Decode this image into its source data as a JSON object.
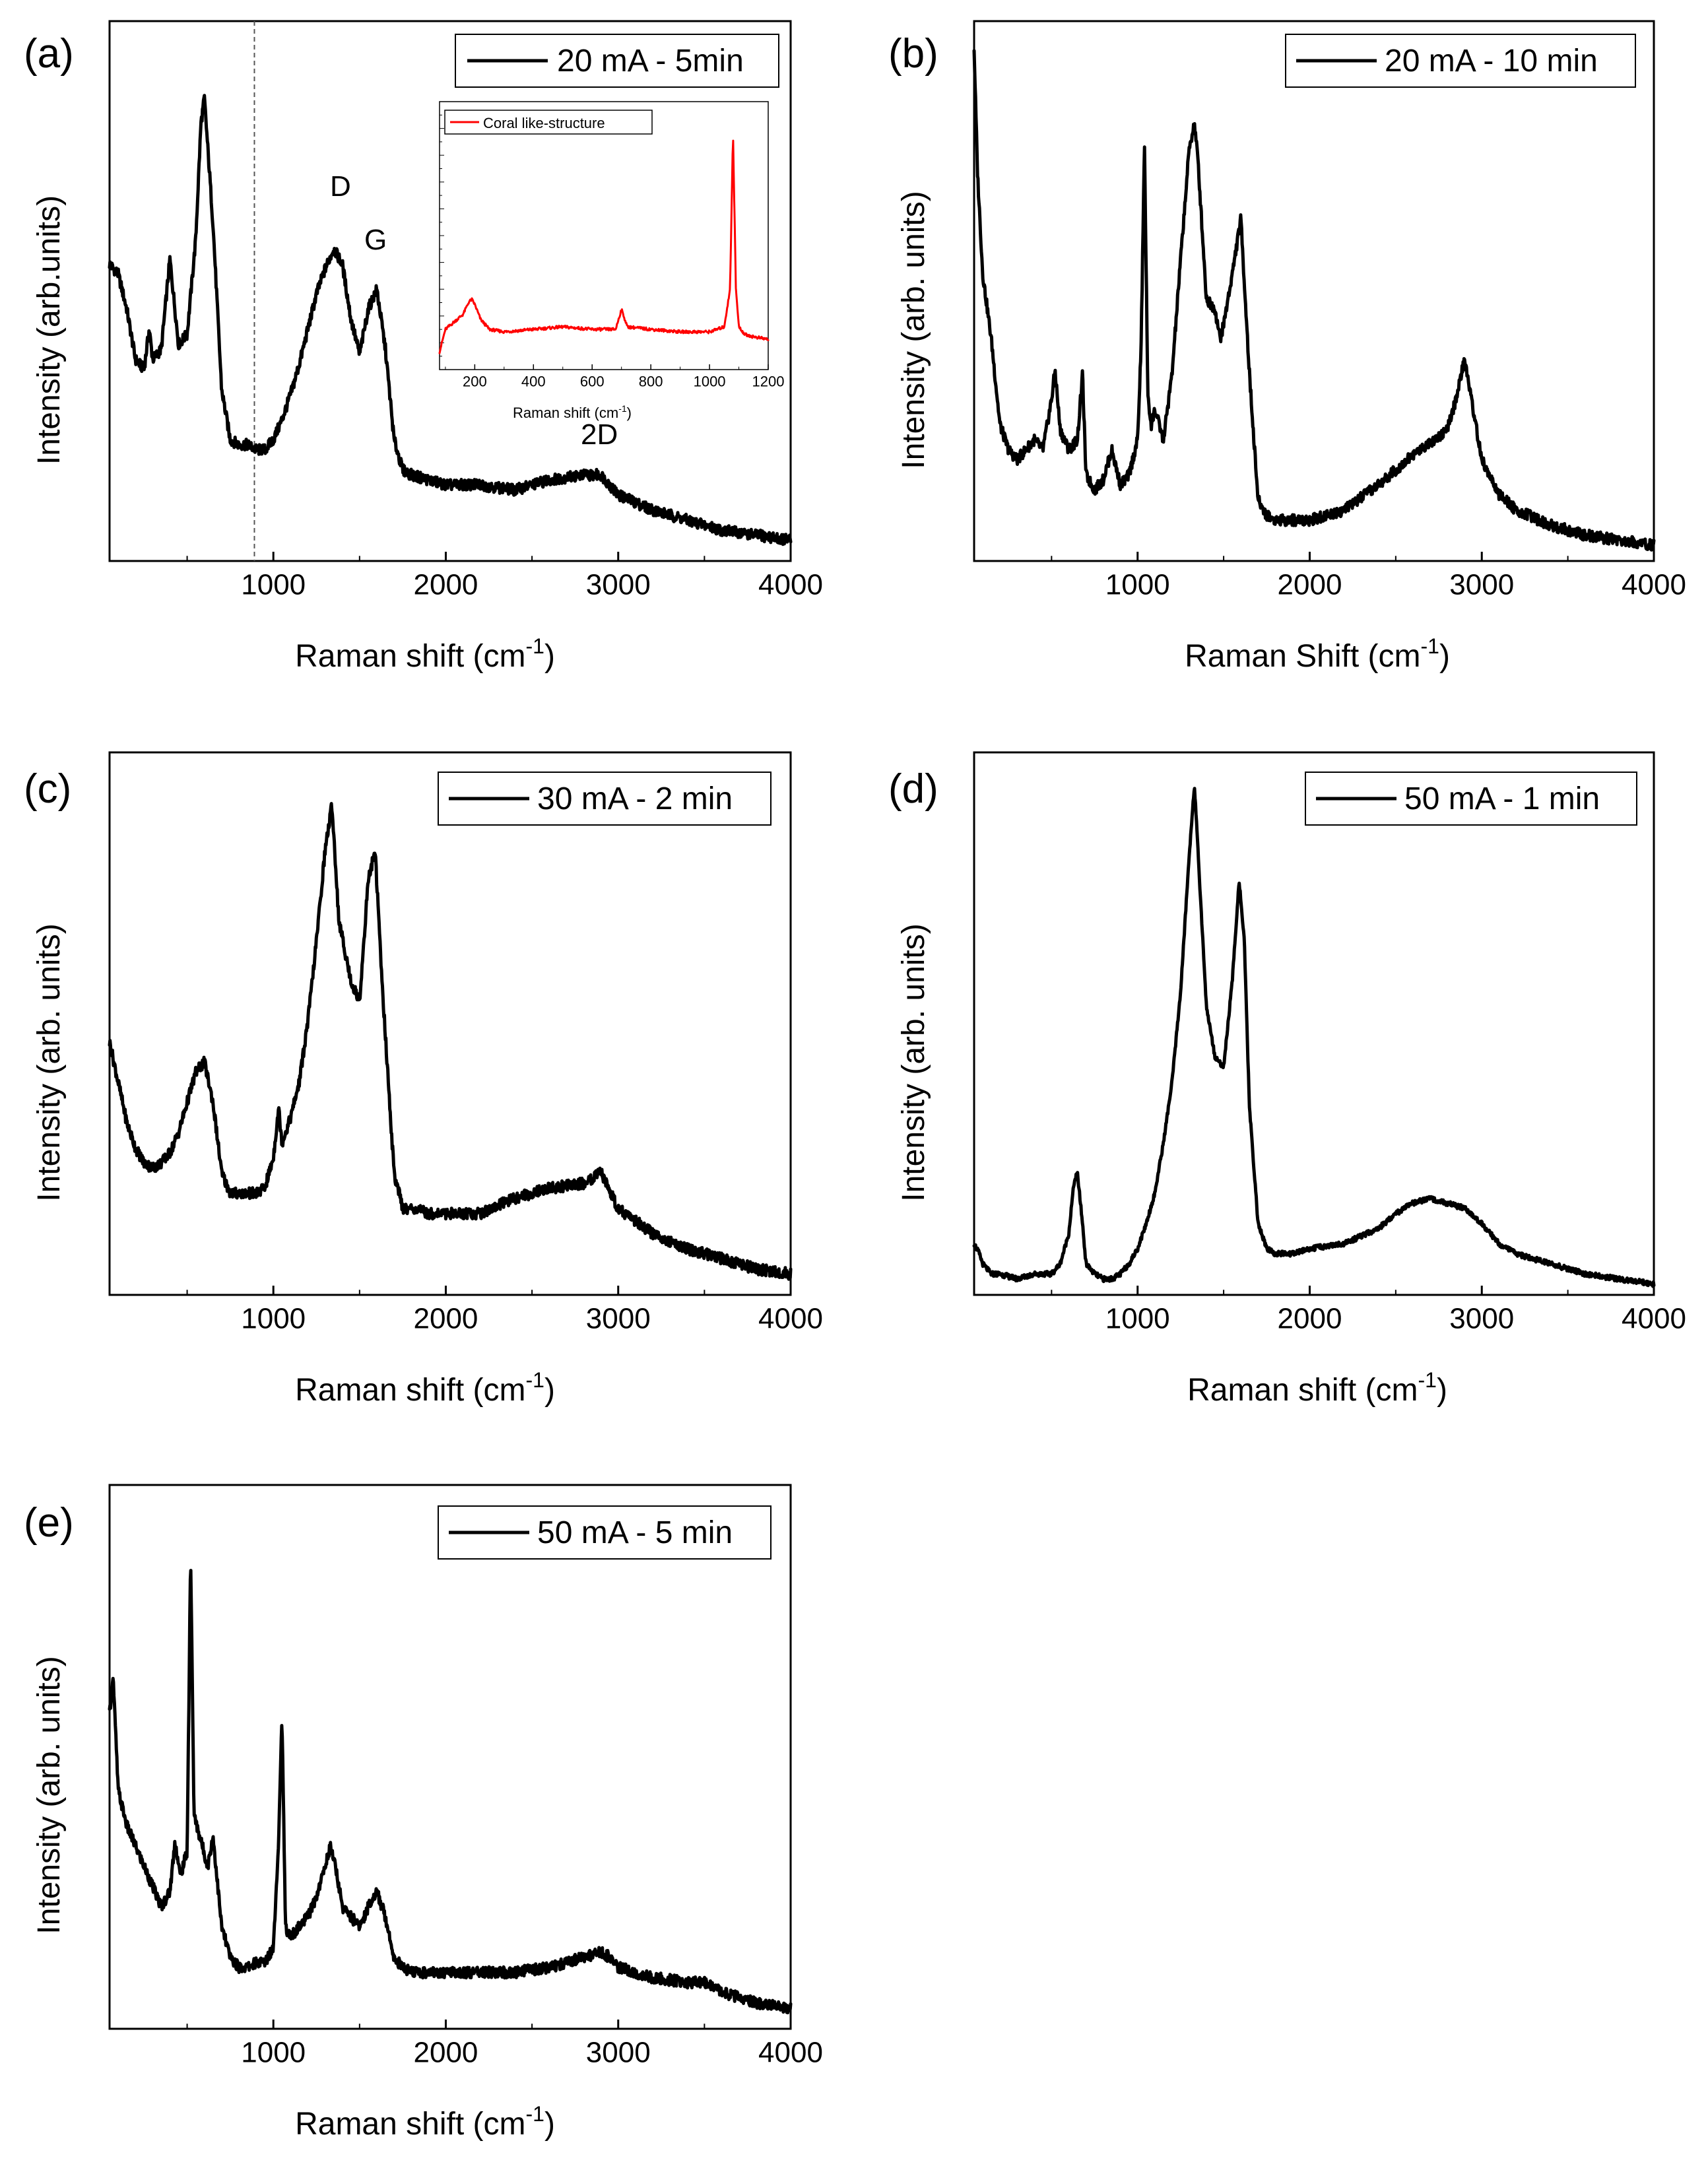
{
  "panels": [
    {
      "id": "a",
      "panel_label": "(a)",
      "legend": "20 mA - 5min",
      "xlabel": "Raman shift (cm",
      "xlabel_sup": "-1",
      "xlabel_close": ")",
      "ylabel": "Intensity (arb.units)",
      "annotations": [
        "D",
        "G",
        "2D"
      ],
      "inset": {
        "legend": "Coral like-structure",
        "xlabel": "Raman shift (cm",
        "xlabel_sup": "-1",
        "xlabel_close": ")"
      }
    },
    {
      "id": "b",
      "panel_label": "(b)",
      "legend": "20 mA - 10 min",
      "xlabel": "Raman Shift (cm",
      "xlabel_sup": "-1",
      "xlabel_close": ")",
      "ylabel": "Intensity (arb. units)"
    },
    {
      "id": "c",
      "panel_label": "(c)",
      "legend": "30 mA - 2 min",
      "xlabel": "Raman shift (cm",
      "xlabel_sup": "-1",
      "xlabel_close": ")",
      "ylabel": "Intensity (arb. units)"
    },
    {
      "id": "d",
      "panel_label": "(d)",
      "legend": "50 mA - 1 min",
      "xlabel": "Raman shift (cm",
      "xlabel_sup": "-1",
      "xlabel_close": ")",
      "ylabel": "Intensity (arb. units)"
    },
    {
      "id": "e",
      "panel_label": "(e)",
      "legend": "50 mA - 5 min",
      "xlabel": "Raman shift (cm",
      "xlabel_sup": "-1",
      "xlabel_close": ")",
      "ylabel": "Intensity (arb. units)"
    }
  ],
  "chart_data": [
    {
      "panel": "a",
      "type": "line",
      "title": "",
      "series": [
        {
          "name": "20 mA - 5min",
          "color": "#000000",
          "x": [
            50,
            100,
            150,
            200,
            250,
            280,
            300,
            350,
            400,
            450,
            500,
            550,
            580,
            600,
            650,
            700,
            750,
            800,
            850,
            900,
            950,
            1000,
            1050,
            1100,
            1150,
            1200,
            1250,
            1300,
            1350,
            1400,
            1450,
            1500,
            1550,
            1600,
            1650,
            1700,
            1750,
            1800,
            1900,
            2000,
            2200,
            2400,
            2600,
            2800,
            2900,
            3000,
            3200,
            3400,
            3600,
            3800,
            4000
          ],
          "y": [
            0.57,
            0.55,
            0.48,
            0.38,
            0.36,
            0.44,
            0.38,
            0.4,
            0.58,
            0.41,
            0.43,
            0.62,
            0.85,
            0.9,
            0.65,
            0.32,
            0.22,
            0.21,
            0.21,
            0.2,
            0.2,
            0.22,
            0.26,
            0.31,
            0.37,
            0.44,
            0.51,
            0.56,
            0.6,
            0.57,
            0.46,
            0.39,
            0.48,
            0.52,
            0.4,
            0.22,
            0.16,
            0.15,
            0.14,
            0.13,
            0.13,
            0.12,
            0.14,
            0.15,
            0.15,
            0.11,
            0.08,
            0.06,
            0.04,
            0.03,
            0.02
          ]
        }
      ],
      "xlim": [
        50,
        4000
      ],
      "xticks": [
        1000,
        2000,
        3000,
        4000
      ],
      "ylim": [
        0,
        1
      ],
      "reference_line_x": 890,
      "legend_position": "top-right"
    },
    {
      "panel": "a-inset",
      "type": "line",
      "series": [
        {
          "name": "Coral like-structure",
          "color": "#ff0000",
          "x": [
            80,
            100,
            120,
            140,
            160,
            180,
            190,
            200,
            220,
            250,
            300,
            400,
            500,
            600,
            680,
            700,
            720,
            800,
            900,
            1000,
            1050,
            1070,
            1080,
            1090,
            1100,
            1120,
            1150,
            1200
          ],
          "y": [
            0.05,
            0.14,
            0.16,
            0.18,
            0.2,
            0.25,
            0.26,
            0.24,
            0.18,
            0.14,
            0.13,
            0.14,
            0.15,
            0.14,
            0.14,
            0.22,
            0.15,
            0.14,
            0.13,
            0.13,
            0.15,
            0.3,
            0.93,
            0.3,
            0.15,
            0.12,
            0.11,
            0.1
          ]
        }
      ],
      "xlim": [
        80,
        1200
      ],
      "xticks": [
        200,
        400,
        600,
        800,
        1000,
        1200
      ],
      "ylim": [
        0,
        1
      ],
      "legend_position": "top-left"
    },
    {
      "panel": "b",
      "type": "line",
      "series": [
        {
          "name": "20 mA - 10 min",
          "color": "#000000",
          "x": [
            50,
            70,
            100,
            150,
            200,
            250,
            300,
            350,
            400,
            450,
            500,
            520,
            550,
            600,
            650,
            680,
            700,
            750,
            800,
            850,
            900,
            950,
            1000,
            1020,
            1040,
            1060,
            1080,
            1100,
            1150,
            1200,
            1250,
            1300,
            1330,
            1350,
            1400,
            1450,
            1480,
            1500,
            1550,
            1600,
            1650,
            1700,
            1750,
            1800,
            1900,
            2000,
            2200,
            2400,
            2600,
            2800,
            2850,
            2900,
            2950,
            3000,
            3100,
            3200,
            3400,
            3600,
            3800,
            4000
          ],
          "y": [
            1.0,
            0.75,
            0.55,
            0.42,
            0.25,
            0.2,
            0.18,
            0.2,
            0.22,
            0.2,
            0.3,
            0.36,
            0.24,
            0.2,
            0.22,
            0.35,
            0.15,
            0.12,
            0.14,
            0.2,
            0.13,
            0.15,
            0.22,
            0.4,
            0.81,
            0.3,
            0.25,
            0.28,
            0.22,
            0.35,
            0.58,
            0.8,
            0.85,
            0.78,
            0.5,
            0.48,
            0.42,
            0.45,
            0.55,
            0.66,
            0.35,
            0.1,
            0.07,
            0.06,
            0.06,
            0.06,
            0.08,
            0.13,
            0.19,
            0.24,
            0.3,
            0.38,
            0.28,
            0.18,
            0.11,
            0.08,
            0.05,
            0.03,
            0.02,
            0.01
          ]
        }
      ],
      "xlim": [
        50,
        4000
      ],
      "xticks": [
        1000,
        2000,
        3000,
        4000
      ],
      "ylim": [
        0,
        1
      ],
      "legend_position": "top-right"
    },
    {
      "panel": "c",
      "type": "line",
      "series": [
        {
          "name": "30 mA - 2 min",
          "color": "#000000",
          "x": [
            50,
            100,
            150,
            200,
            250,
            300,
            350,
            400,
            450,
            500,
            550,
            600,
            650,
            700,
            750,
            800,
            850,
            900,
            950,
            1000,
            1030,
            1050,
            1070,
            1100,
            1150,
            1200,
            1250,
            1300,
            1340,
            1380,
            1450,
            1500,
            1550,
            1590,
            1630,
            1700,
            1750,
            1800,
            1900,
            2000,
            2200,
            2400,
            2600,
            2800,
            2900,
            3000,
            3200,
            3400,
            3600,
            3800,
            4000
          ],
          "y": [
            0.48,
            0.4,
            0.32,
            0.27,
            0.24,
            0.23,
            0.24,
            0.26,
            0.3,
            0.36,
            0.42,
            0.44,
            0.36,
            0.22,
            0.18,
            0.18,
            0.18,
            0.18,
            0.19,
            0.25,
            0.35,
            0.28,
            0.3,
            0.33,
            0.4,
            0.52,
            0.68,
            0.86,
            0.95,
            0.72,
            0.6,
            0.56,
            0.8,
            0.86,
            0.6,
            0.22,
            0.15,
            0.15,
            0.14,
            0.14,
            0.14,
            0.17,
            0.19,
            0.2,
            0.22,
            0.15,
            0.1,
            0.07,
            0.05,
            0.03,
            0.02
          ]
        }
      ],
      "xlim": [
        50,
        4000
      ],
      "xticks": [
        1000,
        2000,
        3000,
        4000
      ],
      "ylim": [
        0,
        1
      ],
      "legend_position": "top-right"
    },
    {
      "panel": "d",
      "type": "line",
      "series": [
        {
          "name": "50 mA - 1 min",
          "color": "#000000",
          "x": [
            50,
            80,
            100,
            150,
            200,
            300,
            400,
            500,
            550,
            600,
            630,
            650,
            680,
            700,
            750,
            800,
            850,
            900,
            950,
            1000,
            1050,
            1100,
            1150,
            1200,
            1250,
            1300,
            1330,
            1360,
            1400,
            1450,
            1500,
            1550,
            1590,
            1620,
            1650,
            1700,
            1750,
            1800,
            1900,
            2000,
            2200,
            2400,
            2500,
            2600,
            2700,
            2800,
            2900,
            3000,
            3100,
            3200,
            3400,
            3600,
            3800,
            4000
          ],
          "y": [
            0.08,
            0.06,
            0.04,
            0.02,
            0.02,
            0.01,
            0.02,
            0.02,
            0.04,
            0.1,
            0.2,
            0.22,
            0.12,
            0.04,
            0.02,
            0.01,
            0.01,
            0.02,
            0.04,
            0.07,
            0.12,
            0.18,
            0.28,
            0.4,
            0.58,
            0.85,
            0.99,
            0.8,
            0.55,
            0.45,
            0.43,
            0.6,
            0.8,
            0.68,
            0.35,
            0.12,
            0.07,
            0.06,
            0.06,
            0.07,
            0.08,
            0.11,
            0.14,
            0.16,
            0.17,
            0.16,
            0.15,
            0.12,
            0.08,
            0.06,
            0.04,
            0.02,
            0.01,
            0.0
          ]
        }
      ],
      "xlim": [
        50,
        4000
      ],
      "xticks": [
        1000,
        2000,
        3000,
        4000
      ],
      "ylim": [
        0,
        1
      ],
      "legend_position": "top-right"
    },
    {
      "panel": "e",
      "type": "line",
      "series": [
        {
          "name": "50 mA - 5 min",
          "color": "#000000",
          "x": [
            50,
            70,
            100,
            150,
            200,
            250,
            300,
            350,
            400,
            430,
            460,
            500,
            520,
            540,
            580,
            620,
            650,
            700,
            750,
            800,
            850,
            900,
            950,
            1000,
            1030,
            1050,
            1070,
            1100,
            1150,
            1200,
            1250,
            1300,
            1330,
            1360,
            1400,
            1450,
            1500,
            1550,
            1600,
            1650,
            1700,
            1750,
            1800,
            1900,
            2000,
            2200,
            2400,
            2600,
            2800,
            2900,
            2950,
            3000,
            3200,
            3400,
            3500,
            3600,
            3800,
            4000
          ],
          "y": [
            0.6,
            0.68,
            0.45,
            0.38,
            0.34,
            0.3,
            0.26,
            0.22,
            0.25,
            0.35,
            0.28,
            0.33,
            0.92,
            0.4,
            0.35,
            0.3,
            0.36,
            0.18,
            0.12,
            0.1,
            0.1,
            0.11,
            0.11,
            0.14,
            0.35,
            0.6,
            0.18,
            0.16,
            0.18,
            0.2,
            0.24,
            0.3,
            0.34,
            0.3,
            0.22,
            0.2,
            0.18,
            0.22,
            0.25,
            0.2,
            0.12,
            0.1,
            0.09,
            0.09,
            0.09,
            0.09,
            0.09,
            0.1,
            0.12,
            0.13,
            0.12,
            0.1,
            0.08,
            0.07,
            0.07,
            0.05,
            0.03,
            0.02
          ]
        }
      ],
      "xlim": [
        50,
        4000
      ],
      "xticks": [
        1000,
        2000,
        3000,
        4000
      ],
      "ylim": [
        0,
        1
      ],
      "legend_position": "top-right"
    }
  ]
}
